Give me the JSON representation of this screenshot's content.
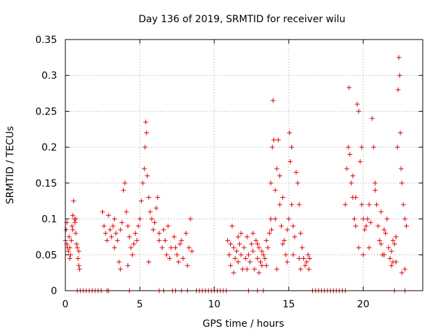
{
  "chart_data": {
    "type": "scatter",
    "title": "Day 136 of 2019, SRMTID for receiver wilu",
    "xlabel": "GPS time / hours",
    "ylabel": "SRMTID / TECUs",
    "xlim": [
      0,
      24
    ],
    "ylim": [
      0,
      0.35
    ],
    "xticks": [
      0,
      5,
      10,
      15,
      20
    ],
    "xtick_labels": [
      "0",
      "5",
      "10",
      "15",
      "20"
    ],
    "yticks": [
      0,
      0.05,
      0.1,
      0.15,
      0.2,
      0.25,
      0.3,
      0.35
    ],
    "ytick_labels": [
      "0",
      "0.05",
      "0.1",
      "0.15",
      "0.2",
      "0.25",
      "0.3",
      "0.35"
    ],
    "grid": true,
    "marker": "+",
    "color": "#e00000",
    "series": [
      {
        "name": "SRMTID",
        "points": [
          [
            0.0,
            0.07
          ],
          [
            0.05,
            0.085
          ],
          [
            0.1,
            0.065
          ],
          [
            0.15,
            0.06
          ],
          [
            0.2,
            0.055
          ],
          [
            0.25,
            0.075
          ],
          [
            0.3,
            0.06
          ],
          [
            0.35,
            0.05
          ],
          [
            0.4,
            0.07
          ],
          [
            0.45,
            0.09
          ],
          [
            0.5,
            0.105
          ],
          [
            0.55,
            0.125
          ],
          [
            0.6,
            0.1
          ],
          [
            0.65,
            0.095
          ],
          [
            0.7,
            0.08
          ],
          [
            0.75,
            0.065
          ],
          [
            0.8,
            0.06
          ],
          [
            0.85,
            0.045
          ],
          [
            0.9,
            0.035
          ],
          [
            0.95,
            0.03
          ],
          [
            0.3,
            0.045
          ],
          [
            0.5,
            0.085
          ],
          [
            0.7,
            0.1
          ],
          [
            0.9,
            0.055
          ],
          [
            0.1,
            0.095
          ],
          [
            2.5,
            0.11
          ],
          [
            2.6,
            0.09
          ],
          [
            2.7,
            0.08
          ],
          [
            2.8,
            0.07
          ],
          [
            2.9,
            0.105
          ],
          [
            3.0,
            0.085
          ],
          [
            3.1,
            0.075
          ],
          [
            3.2,
            0.09
          ],
          [
            3.3,
            0.06
          ],
          [
            3.4,
            0.08
          ],
          [
            3.5,
            0.07
          ],
          [
            3.6,
            0.04
          ],
          [
            3.7,
            0.085
          ],
          [
            3.8,
            0.095
          ],
          [
            3.9,
            0.14
          ],
          [
            4.0,
            0.15
          ],
          [
            4.1,
            0.11
          ],
          [
            4.2,
            0.09
          ],
          [
            4.3,
            0.075
          ],
          [
            4.4,
            0.06
          ],
          [
            4.5,
            0.05
          ],
          [
            4.6,
            0.065
          ],
          [
            4.7,
            0.08
          ],
          [
            4.8,
            0.07
          ],
          [
            4.9,
            0.09
          ],
          [
            5.0,
            0.1
          ],
          [
            5.1,
            0.125
          ],
          [
            5.2,
            0.15
          ],
          [
            5.3,
            0.17
          ],
          [
            5.35,
            0.2
          ],
          [
            5.4,
            0.235
          ],
          [
            5.45,
            0.22
          ],
          [
            5.5,
            0.16
          ],
          [
            5.6,
            0.13
          ],
          [
            5.7,
            0.11
          ],
          [
            5.8,
            0.1
          ],
          [
            5.9,
            0.085
          ],
          [
            6.0,
            0.095
          ],
          [
            6.1,
            0.115
          ],
          [
            6.2,
            0.13
          ],
          [
            3.3,
            0.1
          ],
          [
            3.7,
            0.03
          ],
          [
            4.2,
            0.035
          ],
          [
            5.6,
            0.04
          ],
          [
            6.3,
            0.07
          ],
          [
            6.3,
            0.08
          ],
          [
            6.5,
            0.06
          ],
          [
            6.7,
            0.07
          ],
          [
            6.9,
            0.09
          ],
          [
            7.1,
            0.06
          ],
          [
            7.3,
            0.075
          ],
          [
            7.5,
            0.05
          ],
          [
            7.7,
            0.065
          ],
          [
            7.9,
            0.045
          ],
          [
            8.1,
            0.08
          ],
          [
            8.3,
            0.06
          ],
          [
            8.5,
            0.055
          ],
          [
            6.6,
            0.085
          ],
          [
            7.0,
            0.045
          ],
          [
            7.4,
            0.06
          ],
          [
            7.8,
            0.07
          ],
          [
            8.2,
            0.035
          ],
          [
            8.4,
            0.1
          ],
          [
            6.8,
            0.05
          ],
          [
            7.6,
            0.04
          ],
          [
            10.9,
            0.07
          ],
          [
            11.0,
            0.05
          ],
          [
            11.1,
            0.035
          ],
          [
            11.2,
            0.09
          ],
          [
            11.3,
            0.06
          ],
          [
            11.4,
            0.045
          ],
          [
            11.5,
            0.055
          ],
          [
            11.6,
            0.04
          ],
          [
            11.7,
            0.065
          ],
          [
            11.8,
            0.05
          ],
          [
            11.9,
            0.03
          ],
          [
            12.0,
            0.06
          ],
          [
            12.1,
            0.045
          ],
          [
            12.2,
            0.075
          ],
          [
            12.3,
            0.05
          ],
          [
            12.4,
            0.04
          ],
          [
            12.5,
            0.065
          ],
          [
            12.6,
            0.055
          ],
          [
            12.7,
            0.03
          ],
          [
            12.8,
            0.07
          ],
          [
            12.9,
            0.045
          ],
          [
            13.0,
            0.06
          ],
          [
            13.1,
            0.04
          ],
          [
            13.2,
            0.055
          ],
          [
            13.3,
            0.05
          ],
          [
            13.4,
            0.045
          ],
          [
            13.5,
            0.07
          ],
          [
            13.6,
            0.06
          ],
          [
            13.7,
            0.08
          ],
          [
            13.8,
            0.1
          ],
          [
            11.3,
            0.025
          ],
          [
            12.6,
            0.08
          ],
          [
            13.2,
            0.035
          ],
          [
            11.8,
            0.08
          ],
          [
            12.2,
            0.03
          ],
          [
            13.5,
            0.035
          ],
          [
            11.1,
            0.065
          ],
          [
            12.9,
            0.065
          ],
          [
            11.6,
            0.075
          ],
          [
            13.0,
            0.025
          ],
          [
            13.8,
            0.15
          ],
          [
            13.9,
            0.2
          ],
          [
            13.95,
            0.265
          ],
          [
            14.0,
            0.21
          ],
          [
            14.1,
            0.14
          ],
          [
            14.2,
            0.17
          ],
          [
            14.3,
            0.21
          ],
          [
            14.4,
            0.12
          ],
          [
            14.5,
            0.09
          ],
          [
            14.6,
            0.065
          ],
          [
            14.7,
            0.07
          ],
          [
            14.8,
            0.05
          ],
          [
            14.9,
            0.085
          ],
          [
            15.0,
            0.1
          ],
          [
            15.05,
            0.22
          ],
          [
            15.1,
            0.18
          ],
          [
            15.2,
            0.12
          ],
          [
            15.3,
            0.09
          ],
          [
            15.4,
            0.075
          ],
          [
            15.5,
            0.165
          ],
          [
            15.6,
            0.15
          ],
          [
            15.7,
            0.12
          ],
          [
            15.8,
            0.08
          ],
          [
            15.9,
            0.06
          ],
          [
            16.0,
            0.045
          ],
          [
            16.1,
            0.035
          ],
          [
            16.2,
            0.04
          ],
          [
            16.3,
            0.05
          ],
          [
            16.35,
            0.03
          ],
          [
            16.4,
            0.045
          ],
          [
            14.2,
            0.03
          ],
          [
            14.9,
            0.04
          ],
          [
            15.3,
            0.05
          ],
          [
            15.7,
            0.045
          ],
          [
            14.1,
            0.1
          ],
          [
            14.6,
            0.13
          ],
          [
            15.8,
            0.03
          ],
          [
            14.4,
            0.16
          ],
          [
            15.2,
            0.2
          ],
          [
            13.85,
            0.085
          ],
          [
            18.8,
            0.12
          ],
          [
            18.9,
            0.17
          ],
          [
            19.0,
            0.2
          ],
          [
            19.05,
            0.283
          ],
          [
            19.1,
            0.19
          ],
          [
            19.2,
            0.15
          ],
          [
            19.3,
            0.13
          ],
          [
            19.4,
            0.1
          ],
          [
            19.5,
            0.09
          ],
          [
            19.6,
            0.26
          ],
          [
            19.7,
            0.25
          ],
          [
            19.8,
            0.18
          ],
          [
            19.9,
            0.12
          ],
          [
            20.0,
            0.1
          ],
          [
            20.1,
            0.085
          ],
          [
            20.2,
            0.09
          ],
          [
            20.3,
            0.1
          ],
          [
            20.4,
            0.12
          ],
          [
            20.5,
            0.095
          ],
          [
            20.6,
            0.24
          ],
          [
            20.7,
            0.2
          ],
          [
            20.8,
            0.15
          ],
          [
            20.9,
            0.12
          ],
          [
            21.0,
            0.09
          ],
          [
            21.1,
            0.07
          ],
          [
            21.2,
            0.065
          ],
          [
            21.3,
            0.05
          ],
          [
            21.4,
            0.085
          ],
          [
            21.5,
            0.08
          ],
          [
            21.6,
            0.1
          ],
          [
            21.7,
            0.06
          ],
          [
            21.8,
            0.045
          ],
          [
            21.9,
            0.055
          ],
          [
            22.0,
            0.04
          ],
          [
            22.1,
            0.065
          ],
          [
            22.2,
            0.075
          ],
          [
            22.3,
            0.2
          ],
          [
            22.35,
            0.28
          ],
          [
            22.4,
            0.325
          ],
          [
            22.45,
            0.3
          ],
          [
            22.5,
            0.22
          ],
          [
            22.55,
            0.17
          ],
          [
            22.6,
            0.15
          ],
          [
            22.7,
            0.12
          ],
          [
            22.8,
            0.1
          ],
          [
            22.9,
            0.09
          ],
          [
            22.6,
            0.025
          ],
          [
            22.8,
            0.03
          ],
          [
            21.9,
            0.035
          ],
          [
            20.0,
            0.05
          ],
          [
            19.3,
            0.16
          ],
          [
            19.7,
            0.06
          ],
          [
            20.8,
            0.14
          ],
          [
            21.4,
            0.05
          ],
          [
            22.0,
            0.07
          ],
          [
            19.9,
            0.2
          ],
          [
            20.4,
            0.06
          ],
          [
            21.2,
            0.11
          ],
          [
            22.2,
            0.04
          ],
          [
            19.5,
            0.13
          ]
        ]
      },
      {
        "name": "gaps",
        "points": [
          [
            0.8,
            0.0
          ],
          [
            1.0,
            0.0
          ],
          [
            1.2,
            0.0
          ],
          [
            1.4,
            0.0
          ],
          [
            1.6,
            0.0
          ],
          [
            1.8,
            0.0
          ],
          [
            2.0,
            0.0
          ],
          [
            2.2,
            0.0
          ],
          [
            2.4,
            0.0
          ],
          [
            2.8,
            0.0
          ],
          [
            2.9,
            0.0
          ],
          [
            4.3,
            0.0
          ],
          [
            6.3,
            0.0
          ],
          [
            6.6,
            0.0
          ],
          [
            7.2,
            0.0
          ],
          [
            7.4,
            0.0
          ],
          [
            7.8,
            0.0
          ],
          [
            8.2,
            0.0
          ],
          [
            8.8,
            0.0
          ],
          [
            9.0,
            0.0
          ],
          [
            9.2,
            0.0
          ],
          [
            9.4,
            0.0
          ],
          [
            9.6,
            0.0
          ],
          [
            9.8,
            0.0
          ],
          [
            10.0,
            0.0
          ],
          [
            10.2,
            0.0
          ],
          [
            10.4,
            0.0
          ],
          [
            10.6,
            0.0
          ],
          [
            10.8,
            0.0
          ],
          [
            12.3,
            0.0
          ],
          [
            12.9,
            0.0
          ],
          [
            13.3,
            0.0
          ],
          [
            16.6,
            0.0
          ],
          [
            16.8,
            0.0
          ],
          [
            17.0,
            0.0
          ],
          [
            17.2,
            0.0
          ],
          [
            17.4,
            0.0
          ],
          [
            17.6,
            0.0
          ],
          [
            17.8,
            0.0
          ],
          [
            18.0,
            0.0
          ],
          [
            18.2,
            0.0
          ],
          [
            18.4,
            0.0
          ],
          [
            18.6,
            0.0
          ],
          [
            18.8,
            0.0
          ],
          [
            22.1,
            0.0
          ],
          [
            22.8,
            0.0
          ]
        ]
      }
    ]
  }
}
